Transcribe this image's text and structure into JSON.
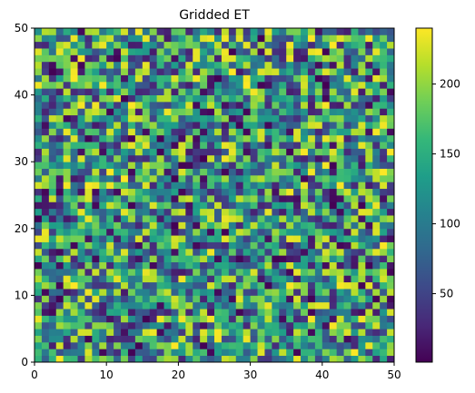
{
  "chart_data": {
    "type": "heatmap",
    "title": "Gridded ET",
    "xlabel": "",
    "ylabel": "",
    "xlim": [
      0,
      50
    ],
    "ylim": [
      0,
      50
    ],
    "xticks": [
      "0",
      "10",
      "20",
      "30",
      "40",
      "50"
    ],
    "yticks": [
      "0",
      "10",
      "20",
      "30",
      "40",
      "50"
    ],
    "grid": false,
    "colormap": "viridis",
    "grid_size": [
      50,
      50
    ],
    "value_range": [
      1,
      240
    ],
    "colorbar": {
      "min": 1,
      "max": 240,
      "ticks": [
        "50",
        "100",
        "150",
        "200"
      ],
      "tick_values": [
        50,
        100,
        150,
        200
      ]
    },
    "values_note": "random-looking field of values spanning roughly 1 to 240"
  },
  "colors": {
    "viridis_stops": [
      "#440154",
      "#482878",
      "#3e4989",
      "#31688e",
      "#26828e",
      "#1f9e89",
      "#35b779",
      "#6ece58",
      "#b5de2b",
      "#fde725"
    ]
  }
}
